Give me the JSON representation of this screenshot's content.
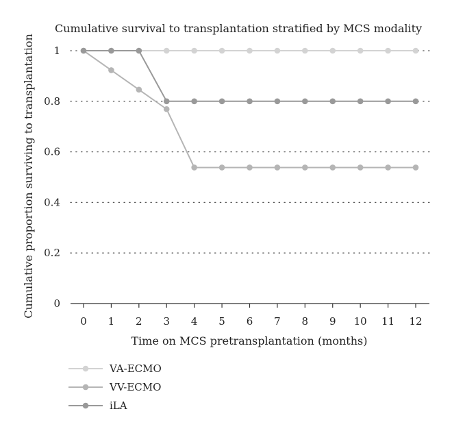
{
  "chart_data": {
    "type": "line",
    "title": "Cumulative survival to transplantation stratified by MCS modality",
    "xlabel": "Time on MCS pretransplantation (months)",
    "ylabel": "Cumulative proportion surviving to transplantation",
    "x": [
      0,
      1,
      2,
      3,
      4,
      5,
      6,
      7,
      8,
      9,
      10,
      11,
      12
    ],
    "x_tick_labels": [
      "0",
      "1",
      "2",
      "3",
      "4",
      "5",
      "6",
      "7",
      "8",
      "9",
      "10",
      "11",
      "12"
    ],
    "y_ticks": [
      0,
      0.2,
      0.4,
      0.6,
      0.8,
      1
    ],
    "y_tick_labels": [
      "0",
      "0.2",
      "0.4",
      "0.6",
      "0.8",
      "1"
    ],
    "xlim": [
      0,
      12
    ],
    "ylim": [
      0,
      1
    ],
    "grid": "horizontal dotted",
    "legend_position": "bottom-left",
    "series": [
      {
        "name": "VA-ECMO",
        "color": "#d3d3d3",
        "values": [
          1,
          1,
          1,
          1,
          1,
          1,
          1,
          1,
          1,
          1,
          1,
          1,
          1
        ]
      },
      {
        "name": "VV-ECMO",
        "color": "#b5b5b5",
        "values": [
          1,
          0.923,
          0.846,
          0.769,
          0.538,
          0.538,
          0.538,
          0.538,
          0.538,
          0.538,
          0.538,
          0.538,
          0.538
        ]
      },
      {
        "name": "iLA",
        "color": "#999999",
        "values": [
          1,
          1,
          1,
          0.8,
          0.8,
          0.8,
          0.8,
          0.8,
          0.8,
          0.8,
          0.8,
          0.8,
          0.8
        ]
      }
    ]
  }
}
